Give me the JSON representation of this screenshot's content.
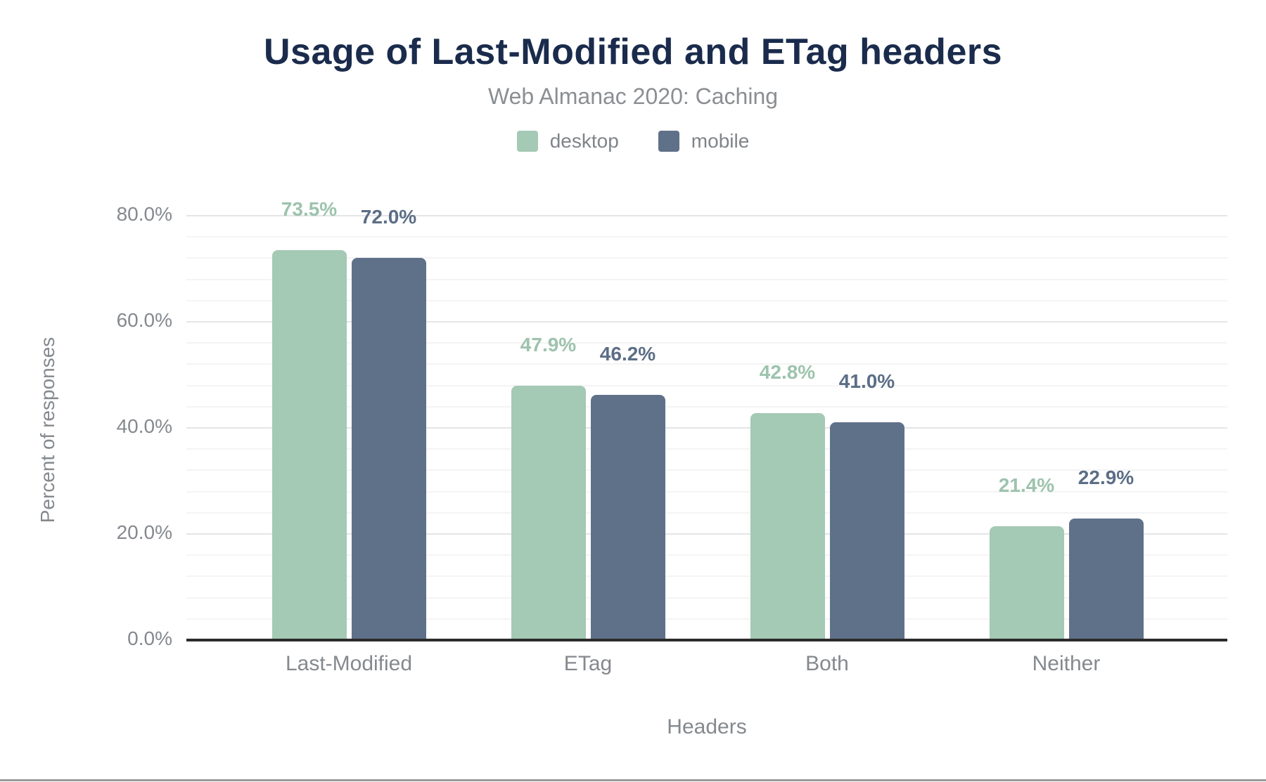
{
  "chart_data": {
    "type": "bar",
    "title": "Usage of Last-Modified and ETag headers",
    "subtitle": "Web Almanac 2020: Caching",
    "categories": [
      "Last-Modified",
      "ETag",
      "Both",
      "Neither"
    ],
    "series": [
      {
        "name": "desktop",
        "color": "#a4c9b4",
        "label_color": "#9dc3ad",
        "values": [
          73.5,
          47.9,
          42.8,
          21.4
        ],
        "labels": [
          "73.5%",
          "47.9%",
          "42.8%",
          "21.4%"
        ]
      },
      {
        "name": "mobile",
        "color": "#5f7189",
        "label_color": "#5c6e86",
        "values": [
          72.0,
          46.2,
          41.0,
          22.9
        ],
        "labels": [
          "72.0%",
          "46.2%",
          "41.0%",
          "22.9%"
        ]
      }
    ],
    "xlabel": "Headers",
    "ylabel": "Percent of responses",
    "ylim": [
      0,
      80
    ],
    "yticks": [
      {
        "value": 0,
        "label": "0.0%"
      },
      {
        "value": 20,
        "label": "20.0%"
      },
      {
        "value": 40,
        "label": "40.0%"
      },
      {
        "value": 60,
        "label": "60.0%"
      },
      {
        "value": 80,
        "label": "80.0%"
      }
    ],
    "grid": {
      "on": true,
      "major_every": 20,
      "minor_every": 4
    },
    "legend_position": "top"
  },
  "colors": {
    "title_text": "#1a2b4c",
    "subtitle_text": "#8b8e92",
    "tick_text": "#85898e",
    "axis_line": "#2b2b2b",
    "grid_major": "#e3e5e7",
    "grid_minor": "#f4f4f5",
    "bottom_divider": "#9a9a9a",
    "background": "#ffffff"
  }
}
